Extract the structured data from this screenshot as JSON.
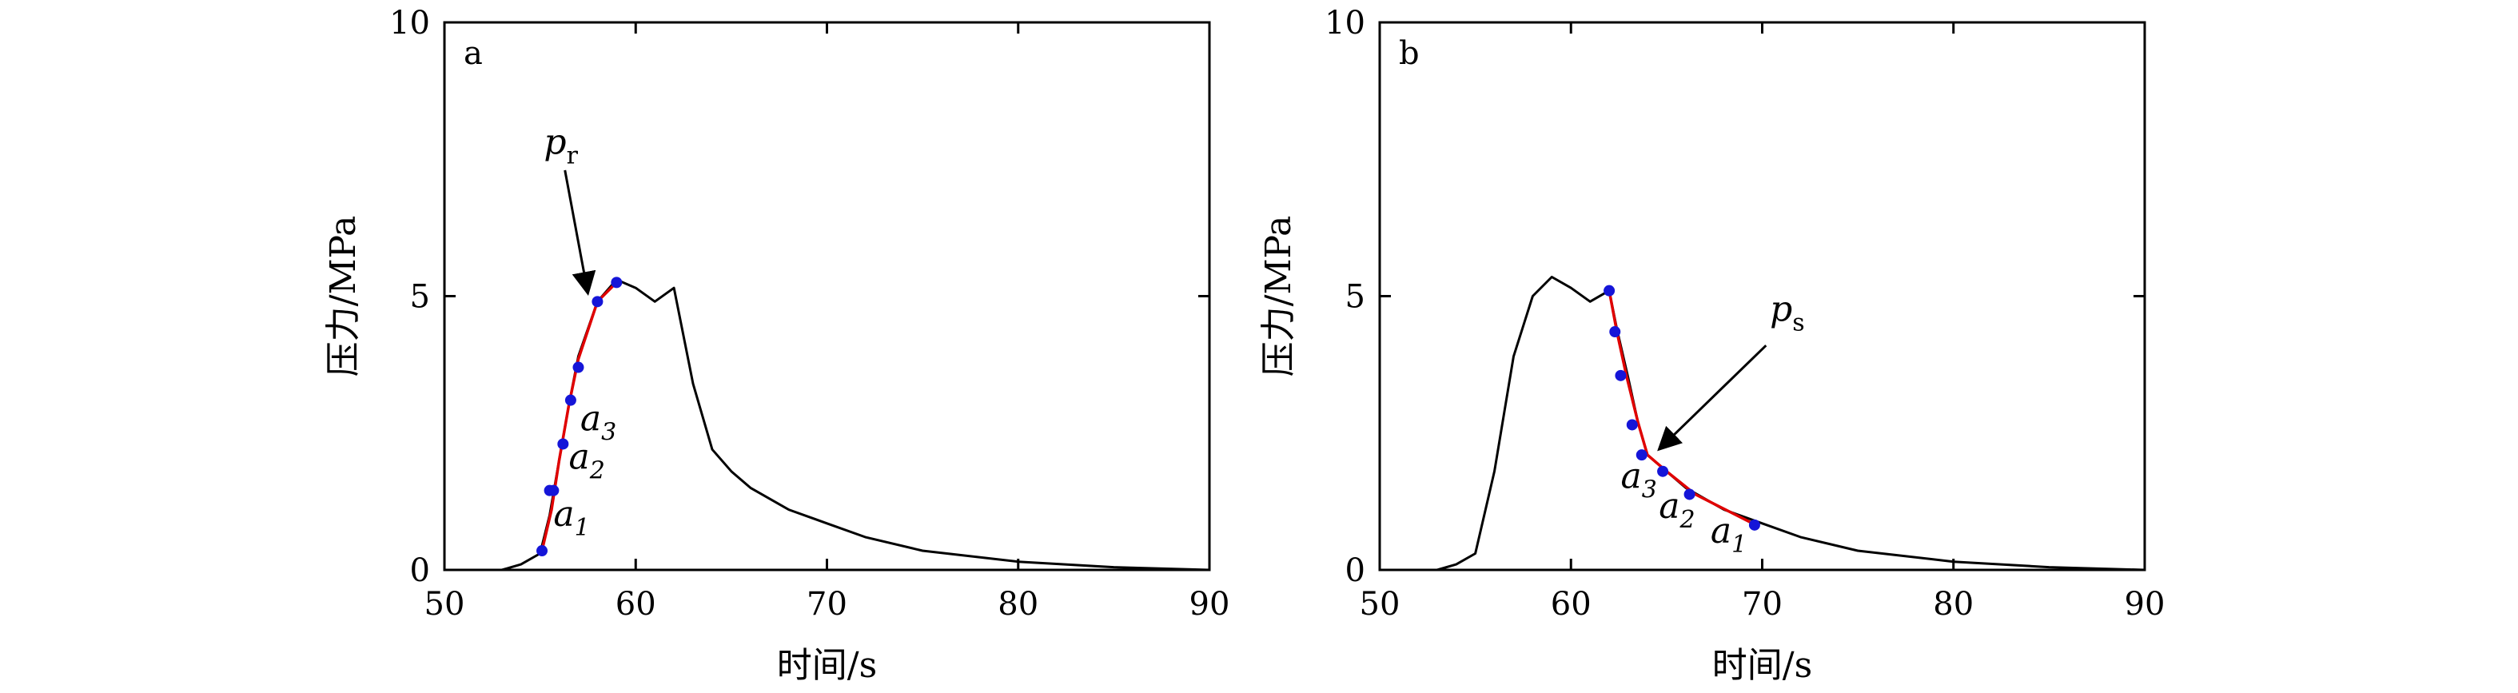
{
  "chart_data": [
    {
      "type": "line",
      "panel_label": "a",
      "xlabel": "时间/s",
      "ylabel": "压力/MPa",
      "xlim": [
        50,
        90
      ],
      "ylim": [
        0,
        10
      ],
      "xticks": [
        50,
        60,
        70,
        80,
        90
      ],
      "yticks": [
        0,
        5,
        10
      ],
      "grid": false,
      "series": [
        {
          "color": "#000000",
          "x": [
            50,
            53,
            54,
            55,
            55.5,
            56,
            56.5,
            57,
            58,
            59,
            60,
            61,
            62,
            63,
            64,
            65,
            66,
            68,
            70,
            72,
            75,
            80,
            85,
            90
          ],
          "y": [
            0,
            0,
            0.1,
            0.3,
            1.0,
            2.0,
            3.0,
            3.9,
            4.9,
            5.3,
            5.15,
            4.9,
            5.15,
            3.4,
            2.2,
            1.8,
            1.5,
            1.1,
            0.85,
            0.6,
            0.35,
            0.15,
            0.05,
            0
          ]
        },
        {
          "color": "#e00000",
          "role": "fit",
          "x": [
            55.1,
            55.6,
            56,
            56.5,
            57,
            58,
            59
          ],
          "y": [
            0.35,
            1.1,
            2.0,
            3.0,
            3.85,
            4.9,
            5.25
          ]
        },
        {
          "color": "#1515d8",
          "role": "points",
          "x": [
            55.1,
            55.5,
            55.7,
            56.2,
            56.6,
            57,
            58,
            59
          ],
          "y": [
            0.35,
            1.45,
            1.45,
            2.3,
            3.1,
            3.7,
            4.9,
            5.25
          ]
        }
      ],
      "annotations": [
        {
          "main": "p",
          "sub": "r",
          "sub_pos": "upright",
          "x": 55.2,
          "y": 7.6
        },
        {
          "main": "a",
          "sub": "3",
          "x": 57.1,
          "y": 2.55
        },
        {
          "main": "a",
          "sub": "2",
          "x": 56.5,
          "y": 1.85
        },
        {
          "main": "a",
          "sub": "1",
          "x": 55.7,
          "y": 0.8
        }
      ],
      "arrow": {
        "from": [
          56.3,
          7.3
        ],
        "to": [
          57.5,
          5.05
        ]
      }
    },
    {
      "type": "line",
      "panel_label": "b",
      "xlabel": "时间/s",
      "ylabel": "压力/MPa",
      "xlim": [
        50,
        90
      ],
      "ylim": [
        0,
        10
      ],
      "xticks": [
        50,
        60,
        70,
        80,
        90
      ],
      "yticks": [
        0,
        5,
        10
      ],
      "grid": false,
      "series": [
        {
          "color": "#000000",
          "x": [
            50,
            53,
            54,
            55,
            56,
            57,
            58,
            59,
            60,
            61,
            62,
            62.4,
            63,
            63.5,
            64,
            65,
            66,
            68,
            70,
            72,
            75,
            80,
            85,
            90
          ],
          "y": [
            0,
            0,
            0.1,
            0.3,
            1.8,
            3.9,
            5.0,
            5.35,
            5.15,
            4.9,
            5.1,
            4.4,
            3.5,
            2.7,
            2.1,
            1.8,
            1.5,
            1.1,
            0.85,
            0.6,
            0.35,
            0.15,
            0.05,
            0
          ]
        },
        {
          "color": "#e00000",
          "role": "fit",
          "x": [
            62,
            62.4,
            62.9,
            63.5,
            64,
            65,
            66.5,
            69.5
          ],
          "y": [
            5.1,
            4.35,
            3.55,
            2.7,
            2.1,
            1.8,
            1.38,
            0.85
          ]
        },
        {
          "color": "#1515d8",
          "role": "points",
          "x": [
            62,
            62.3,
            62.6,
            63.2,
            63.7,
            64.8,
            66.2,
            69.6
          ],
          "y": [
            5.1,
            4.35,
            3.55,
            2.65,
            2.1,
            1.8,
            1.38,
            0.82
          ]
        }
      ],
      "annotations": [
        {
          "main": "p",
          "sub": "s",
          "sub_pos": "upright",
          "x": 70.4,
          "y": 4.55
        },
        {
          "main": "a",
          "sub": "3",
          "x": 62.6,
          "y": 1.5
        },
        {
          "main": "a",
          "sub": "2",
          "x": 64.6,
          "y": 0.95
        },
        {
          "main": "a",
          "sub": "1",
          "x": 67.3,
          "y": 0.5
        }
      ],
      "arrow": {
        "from": [
          70.2,
          4.1
        ],
        "to": [
          64.6,
          2.2
        ]
      }
    }
  ]
}
